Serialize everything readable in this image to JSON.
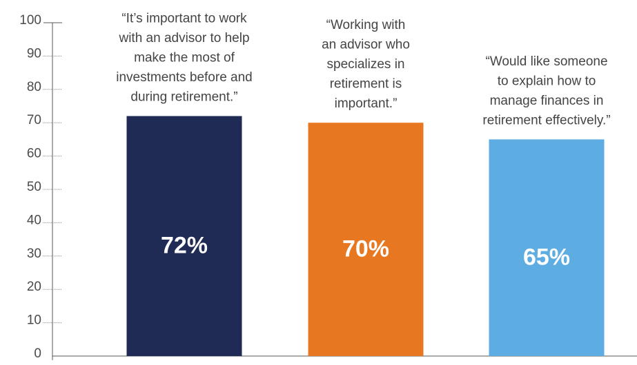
{
  "chart_data": {
    "type": "bar",
    "categories": [
      null,
      null,
      null
    ],
    "values": [
      72,
      70,
      65
    ],
    "value_labels": [
      "72%",
      "70%",
      "65%"
    ],
    "colors": [
      "#1f2a55",
      "#e87722",
      "#5dade2"
    ],
    "annotations": [
      [
        "“It’s important to work",
        "with an advisor to help",
        "make the most of",
        "investments before and",
        "during retirement.”"
      ],
      [
        "“Working with",
        "an advisor who",
        "specializes in",
        "retirement is",
        "important.”"
      ],
      [
        "“Would like someone",
        "to explain how to",
        "manage finances in",
        "retirement effectively.”"
      ]
    ],
    "ylim": [
      0,
      100
    ],
    "yticks": [
      0,
      10,
      20,
      30,
      40,
      50,
      60,
      70,
      80,
      90,
      100
    ]
  }
}
